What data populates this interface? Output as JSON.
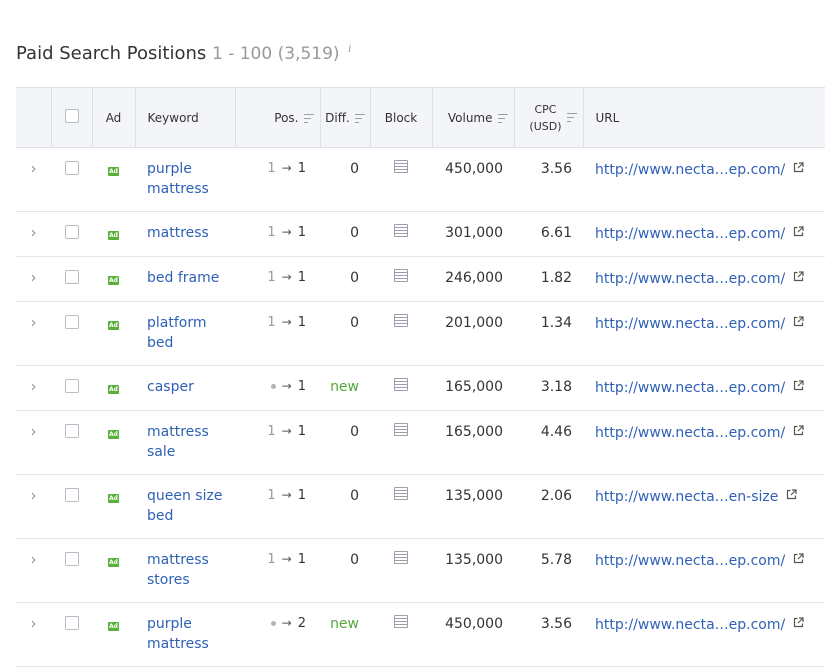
{
  "header": {
    "title": "Paid Search Positions",
    "range": "1 - 100 (3,519)",
    "info_glyph": "i"
  },
  "columns": {
    "ad": "Ad",
    "keyword": "Keyword",
    "pos": "Pos.",
    "diff": "Diff.",
    "block": "Block",
    "volume": "Volume",
    "cpc_line1": "CPC",
    "cpc_line2": "(USD)",
    "url": "URL"
  },
  "icons": {
    "expand": "chevron-right-icon",
    "ad": "ad-badge-icon",
    "block": "block-layout-icon",
    "external": "external-link-icon",
    "sort": "sort-icon"
  },
  "colors": {
    "link": "#2f61b6",
    "new": "#53a63c",
    "ad_badge": "#5aaf3a",
    "header_bg": "#f4f5f9"
  },
  "ad_badge_text": "Ad",
  "rows": [
    {
      "kw1": "purple",
      "kw2": "mattress",
      "prev": "1",
      "prev_is_dot": false,
      "cur": "1",
      "diff": "0",
      "diff_new": false,
      "volume": "450,000",
      "cpc": "3.56",
      "url_start": "http://www.necta",
      "url_end": "ep.com/",
      "tall": true
    },
    {
      "kw1": "mattress",
      "kw2": "",
      "prev": "1",
      "prev_is_dot": false,
      "cur": "1",
      "diff": "0",
      "diff_new": false,
      "volume": "301,000",
      "cpc": "6.61",
      "url_start": "http://www.necta",
      "url_end": "ep.com/",
      "tall": false
    },
    {
      "kw1": "bed frame",
      "kw2": "",
      "prev": "1",
      "prev_is_dot": false,
      "cur": "1",
      "diff": "0",
      "diff_new": false,
      "volume": "246,000",
      "cpc": "1.82",
      "url_start": "http://www.necta",
      "url_end": "ep.com/",
      "tall": false
    },
    {
      "kw1": "platform",
      "kw2": "bed",
      "prev": "1",
      "prev_is_dot": false,
      "cur": "1",
      "diff": "0",
      "diff_new": false,
      "volume": "201,000",
      "cpc": "1.34",
      "url_start": "http://www.necta",
      "url_end": "ep.com/",
      "tall": true
    },
    {
      "kw1": "casper",
      "kw2": "",
      "prev": "",
      "prev_is_dot": true,
      "cur": "1",
      "diff": "new",
      "diff_new": true,
      "volume": "165,000",
      "cpc": "3.18",
      "url_start": "http://www.necta",
      "url_end": "ep.com/",
      "tall": false
    },
    {
      "kw1": "mattress",
      "kw2": "sale",
      "prev": "1",
      "prev_is_dot": false,
      "cur": "1",
      "diff": "0",
      "diff_new": false,
      "volume": "165,000",
      "cpc": "4.46",
      "url_start": "http://www.necta",
      "url_end": "ep.com/",
      "tall": true
    },
    {
      "kw1": "queen size",
      "kw2": "bed",
      "prev": "1",
      "prev_is_dot": false,
      "cur": "1",
      "diff": "0",
      "diff_new": false,
      "volume": "135,000",
      "cpc": "2.06",
      "url_start": "http://www.necta",
      "url_end": "en-size",
      "tall": true
    },
    {
      "kw1": "mattress",
      "kw2": "stores",
      "prev": "1",
      "prev_is_dot": false,
      "cur": "1",
      "diff": "0",
      "diff_new": false,
      "volume": "135,000",
      "cpc": "5.78",
      "url_start": "http://www.necta",
      "url_end": "ep.com/",
      "tall": true
    },
    {
      "kw1": "purple",
      "kw2": "mattress",
      "prev": "",
      "prev_is_dot": true,
      "cur": "2",
      "diff": "new",
      "diff_new": true,
      "volume": "450,000",
      "cpc": "3.56",
      "url_start": "http://www.necta",
      "url_end": "ep.com/",
      "tall": true
    }
  ]
}
